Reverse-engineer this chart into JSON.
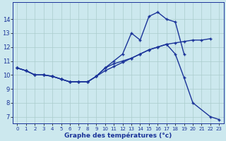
{
  "c1x": [
    0,
    1,
    2,
    3,
    4,
    5,
    6,
    7,
    8,
    9,
    10,
    11,
    12,
    13,
    14,
    15,
    16,
    17,
    18,
    19
  ],
  "c1y": [
    10.5,
    10.3,
    10.0,
    10.0,
    9.9,
    9.7,
    9.5,
    9.5,
    9.5,
    9.9,
    10.5,
    11.0,
    11.5,
    13.0,
    12.5,
    14.2,
    14.5,
    14.0,
    13.8,
    11.5
  ],
  "c2x": [
    0,
    1,
    2,
    3,
    4,
    5,
    6,
    7,
    8,
    9,
    10,
    11,
    12,
    13,
    14,
    15,
    16,
    17,
    18,
    19,
    20,
    21,
    22
  ],
  "c2y": [
    10.5,
    10.3,
    10.0,
    10.0,
    9.9,
    9.7,
    9.5,
    9.5,
    9.5,
    9.9,
    10.3,
    10.6,
    10.9,
    11.2,
    11.5,
    11.8,
    12.0,
    12.2,
    12.3,
    12.4,
    12.5,
    12.5,
    12.6
  ],
  "c3x": [
    0,
    1,
    2,
    3,
    4,
    5,
    6,
    7,
    8,
    9,
    10,
    11,
    12,
    13,
    14,
    15,
    16,
    17,
    18,
    19,
    20,
    22,
    23
  ],
  "c3y": [
    10.5,
    10.3,
    10.0,
    10.0,
    9.9,
    9.7,
    9.5,
    9.5,
    9.5,
    9.9,
    10.5,
    10.8,
    11.0,
    11.2,
    11.5,
    11.8,
    12.0,
    12.2,
    11.5,
    9.8,
    8.0,
    7.0,
    6.8
  ],
  "xlabel": "Graphe des températures (°c)",
  "ylim": [
    6.5,
    15.2
  ],
  "xlim": [
    -0.5,
    23.5
  ],
  "yticks": [
    7,
    8,
    9,
    10,
    11,
    12,
    13,
    14
  ],
  "xticks": [
    0,
    1,
    2,
    3,
    4,
    5,
    6,
    7,
    8,
    9,
    10,
    11,
    12,
    13,
    14,
    15,
    16,
    17,
    18,
    19,
    20,
    21,
    22,
    23
  ],
  "line_color": "#1a3399",
  "bg_color": "#cce8ee",
  "grid_color": "#aacccc",
  "marker": "+"
}
